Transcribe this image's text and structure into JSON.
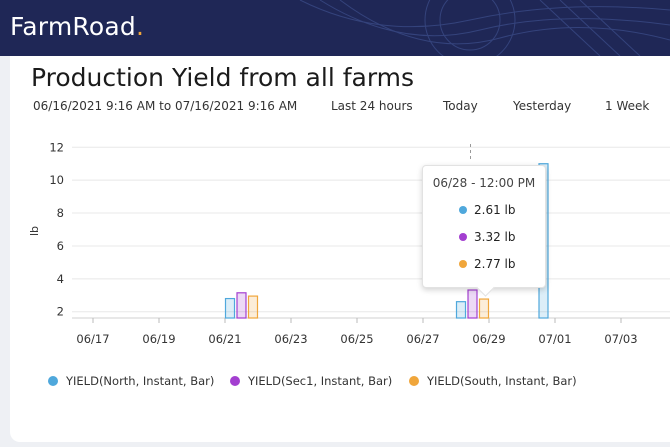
{
  "header": {
    "brand": "FarmRoad",
    "brand_dot": "."
  },
  "page": {
    "title": "Production Yield from all farms",
    "date_range": "06/16/2021 9:16 AM to 07/16/2021 9:16 AM",
    "quick_ranges": [
      "Last 24 hours",
      "Today",
      "Yesterday",
      "1 Week"
    ]
  },
  "colors": {
    "north": "#4fa8dc",
    "sec1": "#a33fd0",
    "south": "#f0a63b",
    "header_bg": "#1f2756"
  },
  "chart_data": {
    "type": "bar",
    "ylabel": "lb",
    "ylim": [
      1.8,
      12.2
    ],
    "y_ticks": [
      2,
      4,
      6,
      8,
      10,
      12
    ],
    "x_ticks": [
      "06/17",
      "06/19",
      "06/21",
      "06/23",
      "06/25",
      "06/27",
      "06/29",
      "07/01",
      "07/03"
    ],
    "series": [
      {
        "name": "YIELD(North, Instant, Bar)",
        "color": "#4fa8dc",
        "points": [
          {
            "x": "06/21 12:00",
            "y": 2.8
          },
          {
            "x": "06/28 12:00",
            "y": 2.61
          },
          {
            "x": "07/01 00:00",
            "y": 11.0
          }
        ]
      },
      {
        "name": "YIELD(Sec1, Instant, Bar)",
        "color": "#a33fd0",
        "points": [
          {
            "x": "06/21 12:00",
            "y": 3.15
          },
          {
            "x": "06/28 12:00",
            "y": 3.32
          }
        ]
      },
      {
        "name": "YIELD(South, Instant, Bar)",
        "color": "#f0a63b",
        "points": [
          {
            "x": "06/21 12:00",
            "y": 2.95
          },
          {
            "x": "06/28 12:00",
            "y": 2.77
          }
        ]
      }
    ]
  },
  "tooltip": {
    "title": "06/28 - 12:00 PM",
    "rows": [
      "2.61 lb",
      "3.32 lb",
      "2.77 lb"
    ]
  }
}
